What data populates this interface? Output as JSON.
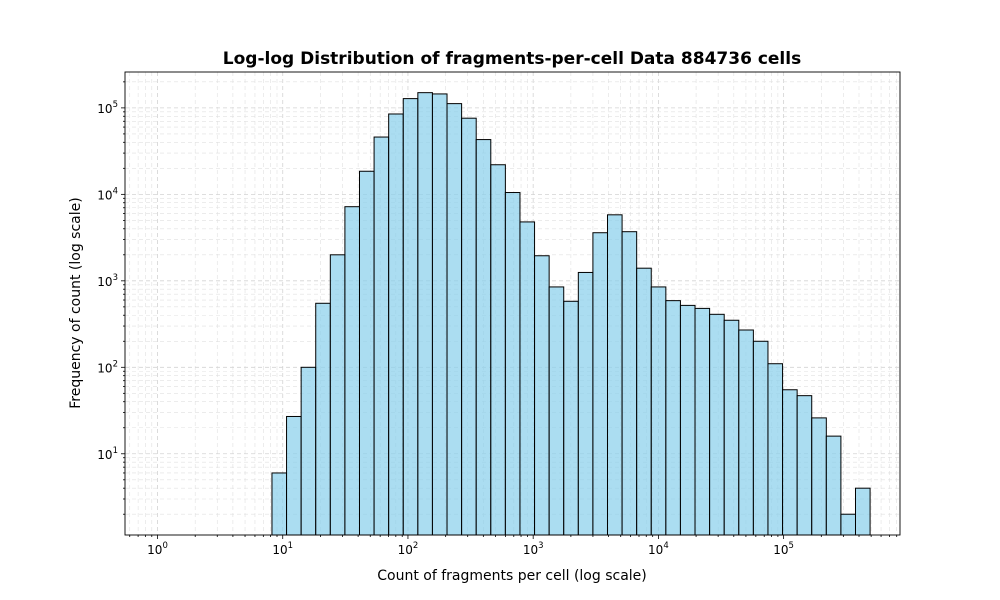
{
  "chart_data": {
    "type": "bar",
    "title": "Log-log Distribution of fragments-per-cell Data 884736 cells",
    "xlabel": "Count of fragments per cell (log scale)",
    "ylabel": "Frequency of count (log scale)",
    "x_scale": "log",
    "y_scale": "log",
    "xlim": [
      0.55,
      850000
    ],
    "ylim": [
      1.15,
      260000
    ],
    "x_ticks": [
      1,
      10,
      100,
      1000,
      10000,
      100000
    ],
    "x_tick_labels": [
      {
        "base": "10",
        "exp": "0"
      },
      {
        "base": "10",
        "exp": "1"
      },
      {
        "base": "10",
        "exp": "2"
      },
      {
        "base": "10",
        "exp": "3"
      },
      {
        "base": "10",
        "exp": "4"
      },
      {
        "base": "10",
        "exp": "5"
      }
    ],
    "y_ticks": [
      10,
      100,
      1000,
      10000,
      100000
    ],
    "y_tick_labels": [
      {
        "base": "10",
        "exp": "1"
      },
      {
        "base": "10",
        "exp": "2"
      },
      {
        "base": "10",
        "exp": "3"
      },
      {
        "base": "10",
        "exp": "4"
      },
      {
        "base": "10",
        "exp": "5"
      }
    ],
    "grid": true,
    "bar_color": "#87ceeb",
    "edge_color": "#000000",
    "bins": {
      "log10_start": 0.914,
      "log10_width": 0.1165,
      "counts": [
        6,
        27,
        100,
        550,
        2000,
        7200,
        18500,
        46000,
        85000,
        128000,
        150000,
        145000,
        112000,
        76000,
        43000,
        22000,
        10500,
        4800,
        1950,
        850,
        580,
        1250,
        3600,
        5800,
        3700,
        1400,
        850,
        590,
        520,
        480,
        410,
        350,
        270,
        200,
        110,
        55,
        47,
        26,
        16,
        2,
        4
      ]
    }
  }
}
